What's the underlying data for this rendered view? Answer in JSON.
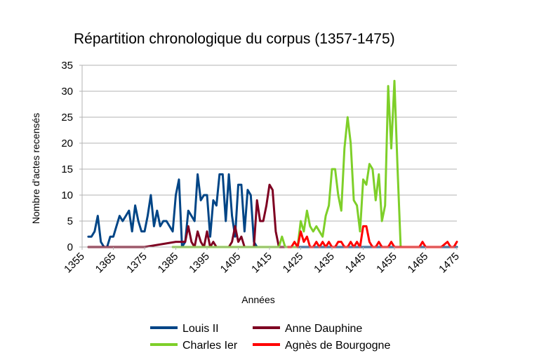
{
  "chart_data": {
    "type": "line",
    "title": "Répartition chronologique du corpus (1357-1475)",
    "xlabel": "Années",
    "ylabel": "Nombre d'actes recensés",
    "xlim": [
      1355,
      1475
    ],
    "ylim": [
      0,
      35
    ],
    "x_ticks": [
      1355,
      1365,
      1375,
      1385,
      1395,
      1405,
      1415,
      1425,
      1435,
      1445,
      1455,
      1465,
      1475
    ],
    "y_ticks": [
      0,
      5,
      10,
      15,
      20,
      25,
      30,
      35
    ],
    "grid": true,
    "legend_position": "bottom",
    "series": [
      {
        "name": "Louis II",
        "color": "#004586",
        "x": [
          1357,
          1358,
          1359,
          1360,
          1361,
          1362,
          1363,
          1364,
          1365,
          1366,
          1367,
          1368,
          1369,
          1370,
          1371,
          1372,
          1373,
          1374,
          1375,
          1376,
          1377,
          1378,
          1379,
          1380,
          1381,
          1382,
          1383,
          1384,
          1385,
          1386,
          1387,
          1388,
          1389,
          1390,
          1391,
          1392,
          1393,
          1394,
          1395,
          1396,
          1397,
          1398,
          1399,
          1400,
          1401,
          1402,
          1403,
          1404,
          1405,
          1406,
          1407,
          1408,
          1409,
          1410,
          1411,
          1412,
          1413,
          1414,
          1415,
          1416,
          1417,
          1418,
          1419,
          1420,
          1425,
          1435,
          1445,
          1455,
          1465,
          1475
        ],
        "y": [
          2,
          2,
          3,
          6,
          1,
          0,
          0,
          2,
          2,
          4,
          6,
          5,
          6,
          7,
          3,
          8,
          5,
          3,
          3,
          6,
          10,
          4,
          7,
          4,
          5,
          5,
          4,
          3,
          10,
          13,
          0,
          1,
          7,
          6,
          5,
          14,
          9,
          10,
          10,
          2,
          9,
          8,
          14,
          14,
          5,
          14,
          6,
          2,
          12,
          12,
          3,
          11,
          10,
          1,
          0,
          0,
          0,
          0,
          0,
          0,
          0,
          0,
          0,
          0,
          0,
          0,
          0,
          0,
          0,
          0
        ]
      },
      {
        "name": "Anne Dauphine",
        "color": "#7e0021",
        "x": [
          1357,
          1365,
          1375,
          1385,
          1386,
          1387,
          1388,
          1389,
          1390,
          1391,
          1392,
          1393,
          1394,
          1395,
          1396,
          1397,
          1398,
          1399,
          1400,
          1401,
          1402,
          1403,
          1404,
          1405,
          1406,
          1407,
          1408,
          1409,
          1410,
          1411,
          1412,
          1413,
          1414,
          1415,
          1416,
          1417,
          1418,
          1419,
          1420
        ],
        "y": [
          0,
          0,
          0,
          1,
          1,
          1,
          1,
          4,
          1,
          0,
          3,
          1,
          0,
          3,
          0,
          1,
          0,
          0,
          0,
          0,
          0,
          1,
          4,
          1,
          2,
          0,
          0,
          0,
          0,
          9,
          5,
          5,
          8,
          12,
          11,
          3,
          0,
          0,
          0
        ]
      },
      {
        "name": "Charles Ier",
        "color": "#7ecf29",
        "x": [
          1384,
          1390,
          1400,
          1410,
          1418,
          1419,
          1420,
          1421,
          1422,
          1423,
          1424,
          1425,
          1426,
          1427,
          1428,
          1429,
          1430,
          1431,
          1432,
          1433,
          1434,
          1435,
          1436,
          1437,
          1438,
          1439,
          1440,
          1441,
          1442,
          1443,
          1444,
          1445,
          1446,
          1447,
          1448,
          1449,
          1450,
          1451,
          1452,
          1453,
          1454,
          1455,
          1456,
          1457,
          1458,
          1459
        ],
        "y": [
          0,
          0,
          0,
          0,
          0,
          2,
          0,
          0,
          0,
          0,
          0,
          5,
          3,
          7,
          4,
          3,
          4,
          3,
          2,
          6,
          8,
          15,
          15,
          10,
          7,
          19,
          25,
          20,
          9,
          8,
          3,
          13,
          12,
          16,
          15,
          9,
          14,
          5,
          8,
          31,
          19,
          32,
          15,
          0,
          0,
          0
        ]
      },
      {
        "name": "Agnès de Bourgogne",
        "color": "#ff0000",
        "x": [
          1421,
          1422,
          1423,
          1424,
          1425,
          1426,
          1427,
          1428,
          1429,
          1430,
          1431,
          1432,
          1433,
          1434,
          1435,
          1436,
          1437,
          1438,
          1439,
          1440,
          1441,
          1442,
          1443,
          1444,
          1445,
          1446,
          1447,
          1448,
          1449,
          1450,
          1451,
          1452,
          1453,
          1454,
          1455,
          1456,
          1457,
          1460,
          1463,
          1464,
          1465,
          1466,
          1470,
          1472,
          1473,
          1474,
          1475
        ],
        "y": [
          0,
          0,
          1,
          0,
          3,
          1,
          2,
          0,
          0,
          1,
          0,
          1,
          0,
          1,
          0,
          0,
          1,
          1,
          0,
          0,
          1,
          0,
          1,
          0,
          4,
          4,
          1,
          0,
          0,
          1,
          0,
          0,
          0,
          1,
          0,
          0,
          0,
          0,
          0,
          1,
          0,
          0,
          0,
          1,
          0,
          0,
          1
        ]
      }
    ]
  }
}
